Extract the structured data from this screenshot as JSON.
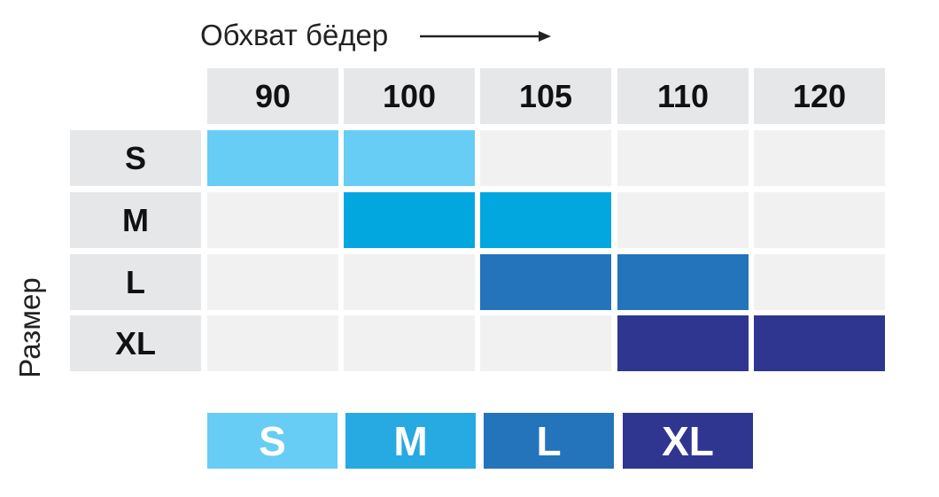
{
  "chart_data": {
    "type": "heatmap",
    "xlabel": "Обхват бёдер",
    "ylabel": "Размер",
    "x": [
      "90",
      "100",
      "105",
      "110",
      "120"
    ],
    "y": [
      "S",
      "M",
      "L",
      "XL"
    ],
    "cells": [
      {
        "row": "S",
        "cols": [
          "90",
          "100"
        ]
      },
      {
        "row": "M",
        "cols": [
          "100",
          "105"
        ]
      },
      {
        "row": "L",
        "cols": [
          "105",
          "110"
        ]
      },
      {
        "row": "XL",
        "cols": [
          "110",
          "120"
        ]
      }
    ],
    "legend": [
      {
        "label": "S",
        "color": "#67cdf5"
      },
      {
        "label": "M",
        "color": "#27a9e1"
      },
      {
        "label": "L",
        "color": "#2374bb"
      },
      {
        "label": "XL",
        "color": "#2f3690"
      }
    ],
    "cell_colors": {
      "S": "#67cdf5",
      "M": "#02a7e0",
      "L": "#2374bb",
      "XL": "#2f3690"
    },
    "empty_color": "#f1f1f1",
    "header_color": "#e6e7e9"
  }
}
